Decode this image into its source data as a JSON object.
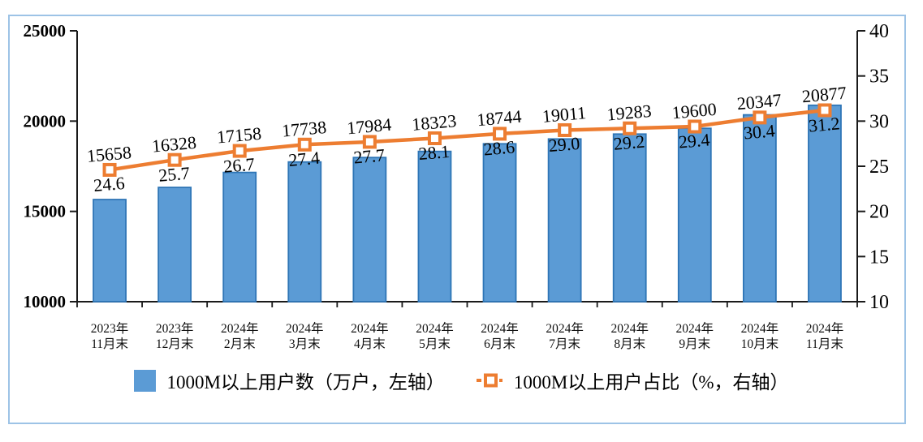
{
  "frame": {
    "border_color": "#9DC3E6"
  },
  "chart_data": {
    "type": "combo-bar-line",
    "categories": [
      "2023年\n11月末",
      "2023年\n12月末",
      "2024年\n2月末",
      "2024年\n3月末",
      "2024年\n4月末",
      "2024年\n5月末",
      "2024年\n6月末",
      "2024年\n7月末",
      "2024年\n8月末",
      "2024年\n9月末",
      "2024年\n10月末",
      "2024年\n11月末"
    ],
    "series": [
      {
        "name": "1000M以上用户数（万户，左轴）",
        "type": "bar",
        "axis": "left",
        "values": [
          15658,
          16328,
          17158,
          17738,
          17984,
          18323,
          18744,
          19011,
          19283,
          19600,
          20347,
          20877
        ],
        "fill": "#5B9BD5",
        "stroke": "#2E75B6"
      },
      {
        "name": "1000M以上用户占比（%，右轴）",
        "type": "line",
        "axis": "right",
        "values": [
          24.6,
          25.7,
          26.7,
          27.4,
          27.7,
          28.1,
          28.6,
          29.0,
          29.2,
          29.4,
          30.4,
          31.2
        ],
        "color": "#ED7D31",
        "marker": "open-square",
        "label_decimals": 1
      }
    ],
    "left_axis": {
      "min": 10000,
      "max": 25000,
      "tick_step": 5000,
      "ticks": [
        "25000",
        "20000",
        "15000",
        "10000"
      ]
    },
    "right_axis": {
      "min": 10,
      "max": 40,
      "tick_step": 5,
      "ticks": [
        "40",
        "35",
        "30",
        "25",
        "20",
        "15",
        "10"
      ]
    },
    "axis_color": "#1a1a1a",
    "grid": false,
    "data_labels": true,
    "legend_position": "bottom"
  }
}
